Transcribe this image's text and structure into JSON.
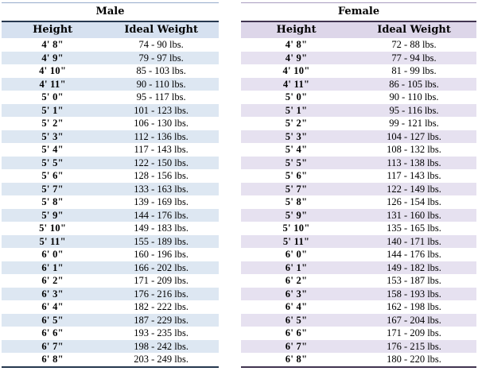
{
  "chart_data": [
    {
      "type": "table",
      "title": "Male",
      "columns": [
        "Height",
        "Ideal Weight"
      ],
      "rows": [
        [
          "4' 8\"",
          "74 - 90 lbs."
        ],
        [
          "4' 9\"",
          "79 - 97 lbs."
        ],
        [
          "4' 10\"",
          "85 - 103 lbs."
        ],
        [
          "4' 11\"",
          "90 - 110 lbs."
        ],
        [
          "5' 0\"",
          "95 - 117 lbs."
        ],
        [
          "5' 1\"",
          "101 - 123 lbs."
        ],
        [
          "5' 2\"",
          "106 - 130 lbs."
        ],
        [
          "5' 3\"",
          "112 - 136 lbs."
        ],
        [
          "5' 4\"",
          "117 - 143 lbs."
        ],
        [
          "5' 5\"",
          "122 - 150 lbs."
        ],
        [
          "5' 6\"",
          "128 - 156 lbs."
        ],
        [
          "5' 7\"",
          "133 - 163 lbs."
        ],
        [
          "5' 8\"",
          "139 - 169 lbs."
        ],
        [
          "5' 9\"",
          "144 - 176 lbs."
        ],
        [
          "5' 10\"",
          "149 - 183 lbs."
        ],
        [
          "5' 11\"",
          "155 - 189 lbs."
        ],
        [
          "6' 0\"",
          "160 - 196 lbs."
        ],
        [
          "6' 1\"",
          "166 - 202 lbs."
        ],
        [
          "6' 2\"",
          "171 - 209 lbs."
        ],
        [
          "6' 3\"",
          "176 - 216 lbs."
        ],
        [
          "6' 4\"",
          "182 - 222 lbs."
        ],
        [
          "6' 5\"",
          "187 - 229 lbs."
        ],
        [
          "6' 6\"",
          "193 - 235 lbs."
        ],
        [
          "6' 7\"",
          "198 - 242 lbs."
        ],
        [
          "6' 8\"",
          "203 - 249 lbs."
        ]
      ]
    },
    {
      "type": "table",
      "title": "Female",
      "columns": [
        "Height",
        "Ideal Weight"
      ],
      "rows": [
        [
          "4' 8\"",
          "72 - 88 lbs."
        ],
        [
          "4' 9\"",
          "77 - 94 lbs."
        ],
        [
          "4' 10\"",
          "81 - 99 lbs."
        ],
        [
          "4' 11\"",
          "86 - 105 lbs."
        ],
        [
          "5' 0\"",
          "90 - 110 lbs."
        ],
        [
          "5' 1\"",
          "95 - 116 lbs."
        ],
        [
          "5' 2\"",
          "99 - 121 lbs."
        ],
        [
          "5' 3\"",
          "104 - 127 lbs."
        ],
        [
          "5' 4\"",
          "108 - 132 lbs."
        ],
        [
          "5' 5\"",
          "113 - 138 lbs."
        ],
        [
          "5' 6\"",
          "117 - 143 lbs."
        ],
        [
          "5' 7\"",
          "122 - 149 lbs."
        ],
        [
          "5' 8\"",
          "126 - 154 lbs."
        ],
        [
          "5' 9\"",
          "131 - 160 lbs."
        ],
        [
          "5' 10\"",
          "135 - 165 lbs."
        ],
        [
          "5' 11\"",
          "140 - 171 lbs."
        ],
        [
          "6' 0\"",
          "144 - 176 lbs."
        ],
        [
          "6' 1\"",
          "149 - 182 lbs."
        ],
        [
          "6' 2\"",
          "153 - 187 lbs."
        ],
        [
          "6' 3\"",
          "158 - 193 lbs."
        ],
        [
          "6' 4\"",
          "162 - 198 lbs."
        ],
        [
          "6' 5\"",
          "167 - 204 lbs."
        ],
        [
          "6' 6\"",
          "171 - 209 lbs."
        ],
        [
          "6' 7\"",
          "176 - 215 lbs."
        ],
        [
          "6' 8\"",
          "180 - 220 lbs."
        ]
      ]
    }
  ],
  "colors": {
    "male": {
      "header_bg": "#d6e1f0",
      "stripe_bg": "#dde7f2",
      "rule_dark": "#26384f",
      "rule_light": "#97accb"
    },
    "female": {
      "header_bg": "#ddd6e9",
      "stripe_bg": "#e6e1f0",
      "rule_dark": "#413450",
      "rule_light": "#a89cc0"
    },
    "text": "#000000",
    "background": "#ffffff"
  }
}
